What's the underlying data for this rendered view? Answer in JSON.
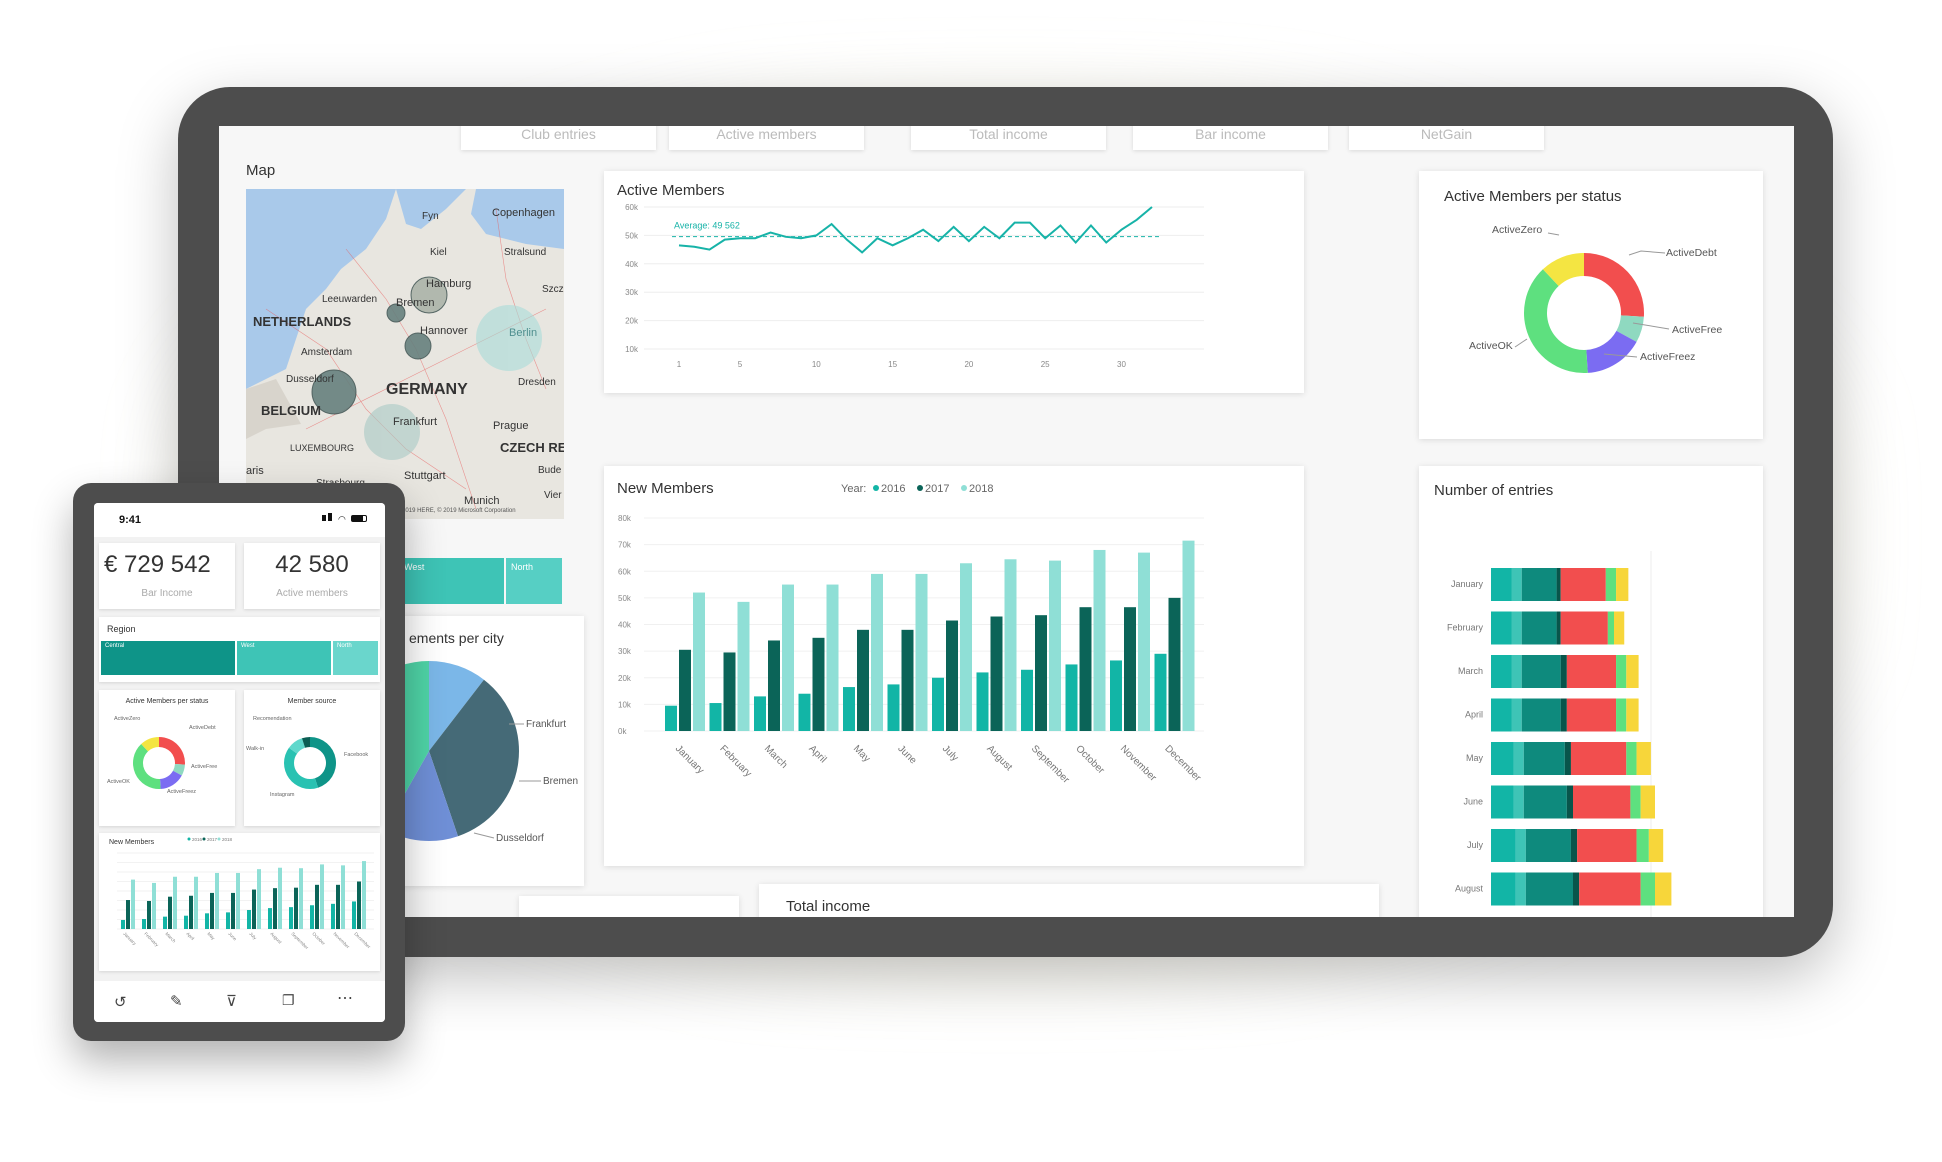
{
  "top_tabs": [
    "Club entries",
    "Active members",
    "Total income",
    "Bar income",
    "NetGain"
  ],
  "map": {
    "title": "Map",
    "places": [
      "Fyn",
      "Copenhagen",
      "Kiel",
      "Stralsund",
      "Hamburg",
      "Szcz",
      "Leeuwarden",
      "Bremen",
      "NETHERLANDS",
      "Hannover",
      "Berlin",
      "Amsterdam",
      "Dusseldorf",
      "GERMANY",
      "Dresden",
      "BELGIUM",
      "Frankfurt",
      "Prague",
      "LUXEMBOURG",
      "CZECH RE",
      "aris",
      "Strasbourg",
      "Stuttgart",
      "Bude",
      "Munich",
      "Vier"
    ],
    "copyright": "© 2019 HERE, © 2019 Microsoft Corporation"
  },
  "region_strip": {
    "labels": [
      "West",
      "North"
    ]
  },
  "pie_card": {
    "title_partial": "ements per city",
    "labels": [
      "Frankfurt",
      "Bremen",
      "Dusseldorf"
    ],
    "colors": [
      "#7bb7e8",
      "#456a77",
      "#6f8fd6",
      "#4fd4a7"
    ]
  },
  "active_members": {
    "title": "Active Members",
    "average_label": "Average: 49 562"
  },
  "status_donut": {
    "title": "Active Members per status",
    "labels": [
      "ActiveZero",
      "ActiveDebt",
      "ActiveFree",
      "ActiveFreez",
      "ActiveOK"
    ]
  },
  "new_members": {
    "title": "New Members",
    "legend_title": "Year:",
    "legend": [
      "2016",
      "2017",
      "2018"
    ]
  },
  "entries": {
    "title": "Number of entries"
  },
  "total_income": {
    "title": "Total income"
  },
  "phone": {
    "time": "9:41",
    "kpi1_value": "€ 729 542",
    "kpi1_label": "Bar Income",
    "kpi2_value": "42 580",
    "kpi2_label": "Active members",
    "region_title": "Region",
    "region_labels": [
      "Central",
      "West",
      "North"
    ],
    "donut1_title": "Active Members per status",
    "donut1_labels": [
      "ActiveZero",
      "ActiveDebt",
      "ActiveFree",
      "ActiveFreez",
      "ActiveOK"
    ],
    "donut2_title": "Member source",
    "donut2_labels": [
      "Recomendation",
      "Walk-in",
      "Facebook",
      "Instagram"
    ],
    "newmem_title": "New Members",
    "newmem_legend": [
      "2016",
      "2017",
      "2018"
    ]
  },
  "colors": {
    "teal_2016": "#12b5a6",
    "teal_2017": "#0b6458",
    "teal_2018": "#8fdfd6",
    "line": "#17b3a8",
    "debt": "#f24e4e",
    "zero": "#f4e542",
    "free": "#8fd9c0",
    "freez": "#7b6cf2",
    "ok": "#5ee07f"
  },
  "chart_data": [
    {
      "type": "line",
      "title": "Active Members",
      "x": [
        1,
        2,
        3,
        4,
        5,
        6,
        7,
        8,
        9,
        10,
        11,
        12,
        13,
        14,
        15,
        16,
        17,
        18,
        19,
        20,
        21,
        22,
        23,
        24,
        25,
        26,
        27,
        28,
        29,
        30,
        31,
        32
      ],
      "series": [
        {
          "values": [
            46500,
            46000,
            45000,
            48500,
            49000,
            49000,
            51000,
            49500,
            49000,
            50000,
            54000,
            48500,
            44000,
            49000,
            46500,
            49000,
            52000,
            48000,
            53000,
            48000,
            53000,
            49000,
            54500,
            54500,
            49000,
            53500,
            47500,
            53500,
            47500,
            52000,
            55500,
            60000
          ]
        }
      ],
      "reference_line": {
        "label": "Average: 49 562",
        "value": 49562
      },
      "yticks": [
        "10k",
        "20k",
        "30k",
        "40k",
        "50k",
        "60k"
      ],
      "xticks": [
        "1",
        "5",
        "10",
        "15",
        "20",
        "25",
        "30"
      ],
      "ylim": [
        10000,
        60000
      ]
    },
    {
      "type": "pie",
      "title": "Active Members per status",
      "categories": [
        "ActiveDebt",
        "ActiveFree",
        "ActiveFreez",
        "ActiveOK",
        "ActiveZero"
      ],
      "values": [
        26,
        7,
        16,
        39,
        12
      ]
    },
    {
      "type": "bar",
      "title": "New Members",
      "categories": [
        "January",
        "February",
        "March",
        "April",
        "May",
        "June",
        "July",
        "August",
        "September",
        "October",
        "November",
        "December"
      ],
      "series": [
        {
          "name": "2016",
          "values": [
            9500,
            10500,
            13000,
            14000,
            16500,
            17500,
            20000,
            22000,
            23000,
            25000,
            26500,
            29000
          ]
        },
        {
          "name": "2017",
          "values": [
            30500,
            29500,
            34000,
            35000,
            38000,
            38000,
            41500,
            43000,
            43500,
            46500,
            46500,
            50000
          ]
        },
        {
          "name": "2018",
          "values": [
            52000,
            48500,
            55000,
            55000,
            59000,
            59000,
            63000,
            64500,
            64000,
            68000,
            67000,
            71500
          ]
        }
      ],
      "yticks": [
        "0k",
        "10k",
        "20k",
        "30k",
        "40k",
        "50k",
        "60k",
        "70k",
        "80k"
      ],
      "ylim": [
        0,
        80000
      ],
      "legend_title": "Year:"
    },
    {
      "type": "bar",
      "title": "Number of entries",
      "categories": [
        "January",
        "February",
        "March",
        "April",
        "May",
        "June",
        "July",
        "August"
      ],
      "series": [
        {
          "values": [
            10,
            10,
            10,
            10,
            11,
            11,
            12,
            12
          ]
        },
        {
          "values": [
            5,
            5,
            5,
            5,
            5,
            5,
            5,
            5
          ]
        },
        {
          "values": [
            17,
            17,
            19,
            19,
            20,
            21,
            22,
            23
          ]
        },
        {
          "values": [
            2,
            2,
            3,
            3,
            3,
            3,
            3,
            3
          ]
        },
        {
          "values": [
            22,
            23,
            24,
            24,
            27,
            28,
            29,
            30
          ]
        },
        {
          "values": [
            5,
            3,
            5,
            5,
            5,
            5,
            6,
            7
          ]
        },
        {
          "values": [
            6,
            5,
            6,
            6,
            7,
            7,
            7,
            8
          ]
        }
      ]
    },
    {
      "type": "pie",
      "title": "ements per city",
      "categories": [
        "",
        "Frankfurt",
        "Bremen",
        "Dusseldorf"
      ],
      "values": [
        7,
        23,
        9,
        28
      ]
    }
  ]
}
